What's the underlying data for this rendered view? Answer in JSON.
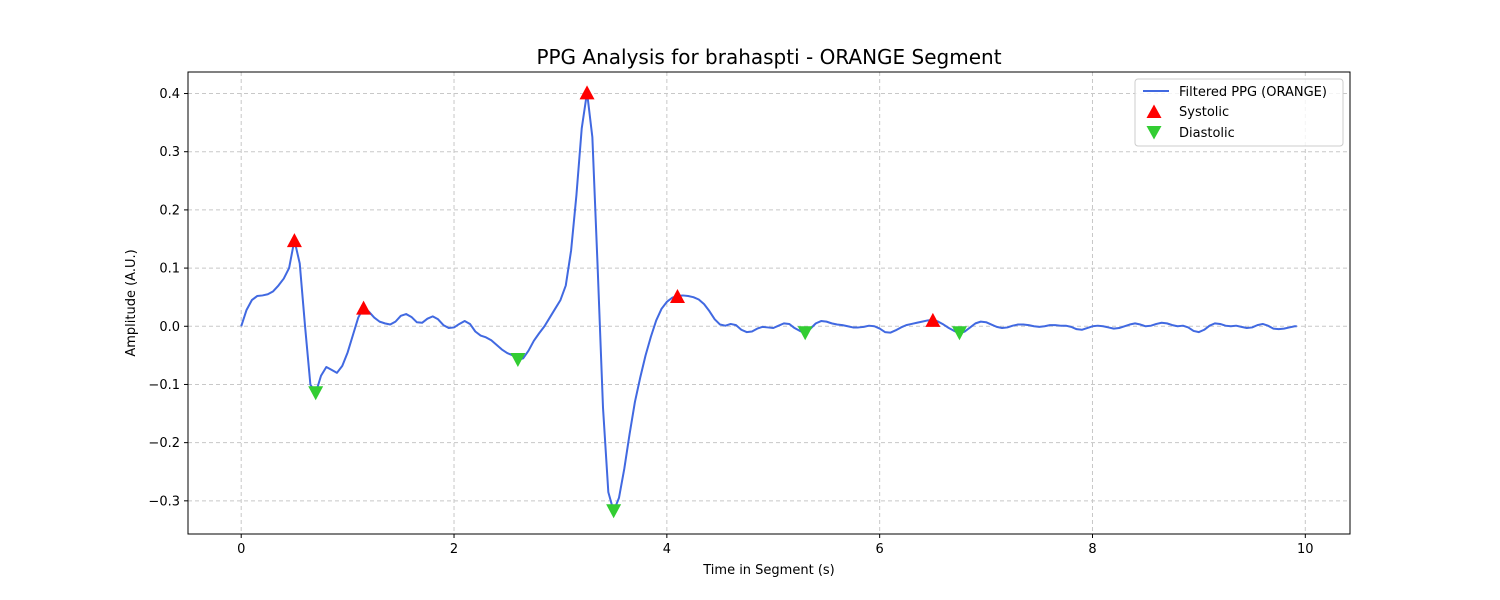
{
  "chart_data": {
    "type": "line",
    "title": "PPG Analysis for brahaspti - ORANGE Segment",
    "xlabel": "Time in Segment (s)",
    "ylabel": "Amplitude (A.U.)",
    "xlim": [
      -0.5,
      10.42
    ],
    "ylim": [
      -0.357,
      0.437
    ],
    "xticks": [
      0,
      2,
      4,
      6,
      8,
      10
    ],
    "xtick_labels": [
      "0",
      "2",
      "4",
      "6",
      "8",
      "10"
    ],
    "yticks": [
      -0.3,
      -0.2,
      -0.1,
      0.0,
      0.1,
      0.2,
      0.3,
      0.4
    ],
    "ytick_labels": [
      "−0.3",
      "−0.2",
      "−0.1",
      "0.0",
      "0.1",
      "0.2",
      "0.3",
      "0.4"
    ],
    "grid": true,
    "legend_position": "top-right",
    "series": [
      {
        "name": "Filtered PPG (ORANGE)",
        "kind": "line",
        "color": "#4169e1",
        "points": [
          [
            0.0,
            0.0
          ],
          [
            0.05,
            0.028
          ],
          [
            0.1,
            0.045
          ],
          [
            0.15,
            0.052
          ],
          [
            0.2,
            0.053
          ],
          [
            0.25,
            0.055
          ],
          [
            0.3,
            0.06
          ],
          [
            0.35,
            0.07
          ],
          [
            0.4,
            0.082
          ],
          [
            0.45,
            0.1
          ],
          [
            0.5,
            0.148
          ],
          [
            0.55,
            0.108
          ],
          [
            0.6,
            0.0
          ],
          [
            0.65,
            -0.1
          ],
          [
            0.7,
            -0.115
          ],
          [
            0.75,
            -0.085
          ],
          [
            0.8,
            -0.07
          ],
          [
            0.85,
            -0.075
          ],
          [
            0.9,
            -0.08
          ],
          [
            0.95,
            -0.068
          ],
          [
            1.0,
            -0.045
          ],
          [
            1.05,
            -0.015
          ],
          [
            1.1,
            0.015
          ],
          [
            1.15,
            0.032
          ],
          [
            1.2,
            0.025
          ],
          [
            1.25,
            0.015
          ],
          [
            1.3,
            0.008
          ],
          [
            1.35,
            0.005
          ],
          [
            1.4,
            0.003
          ],
          [
            1.45,
            0.008
          ],
          [
            1.5,
            0.018
          ],
          [
            1.55,
            0.021
          ],
          [
            1.6,
            0.016
          ],
          [
            1.65,
            0.007
          ],
          [
            1.7,
            0.006
          ],
          [
            1.75,
            0.013
          ],
          [
            1.8,
            0.017
          ],
          [
            1.85,
            0.012
          ],
          [
            1.9,
            0.002
          ],
          [
            1.95,
            -0.003
          ],
          [
            2.0,
            -0.002
          ],
          [
            2.05,
            0.004
          ],
          [
            2.1,
            0.009
          ],
          [
            2.15,
            0.004
          ],
          [
            2.2,
            -0.009
          ],
          [
            2.25,
            -0.016
          ],
          [
            2.3,
            -0.019
          ],
          [
            2.35,
            -0.024
          ],
          [
            2.4,
            -0.032
          ],
          [
            2.45,
            -0.04
          ],
          [
            2.5,
            -0.046
          ],
          [
            2.55,
            -0.05
          ],
          [
            2.6,
            -0.058
          ],
          [
            2.65,
            -0.055
          ],
          [
            2.7,
            -0.042
          ],
          [
            2.75,
            -0.025
          ],
          [
            2.8,
            -0.012
          ],
          [
            2.85,
            0.0
          ],
          [
            2.9,
            0.015
          ],
          [
            2.95,
            0.03
          ],
          [
            3.0,
            0.045
          ],
          [
            3.05,
            0.07
          ],
          [
            3.1,
            0.13
          ],
          [
            3.15,
            0.225
          ],
          [
            3.2,
            0.34
          ],
          [
            3.25,
            0.402
          ],
          [
            3.3,
            0.325
          ],
          [
            3.35,
            0.1
          ],
          [
            3.4,
            -0.14
          ],
          [
            3.45,
            -0.285
          ],
          [
            3.5,
            -0.318
          ],
          [
            3.55,
            -0.295
          ],
          [
            3.6,
            -0.245
          ],
          [
            3.65,
            -0.185
          ],
          [
            3.7,
            -0.13
          ],
          [
            3.75,
            -0.088
          ],
          [
            3.8,
            -0.05
          ],
          [
            3.85,
            -0.018
          ],
          [
            3.9,
            0.01
          ],
          [
            3.95,
            0.03
          ],
          [
            4.0,
            0.042
          ],
          [
            4.05,
            0.049
          ],
          [
            4.1,
            0.052
          ],
          [
            4.15,
            0.053
          ],
          [
            4.2,
            0.052
          ],
          [
            4.25,
            0.05
          ],
          [
            4.3,
            0.046
          ],
          [
            4.35,
            0.038
          ],
          [
            4.4,
            0.026
          ],
          [
            4.45,
            0.012
          ],
          [
            4.5,
            0.003
          ],
          [
            4.55,
            0.001
          ],
          [
            4.6,
            0.004
          ],
          [
            4.65,
            0.002
          ],
          [
            4.7,
            -0.006
          ],
          [
            4.75,
            -0.01
          ],
          [
            4.8,
            -0.009
          ],
          [
            4.85,
            -0.004
          ],
          [
            4.9,
            -0.001
          ],
          [
            4.95,
            -0.002
          ],
          [
            5.0,
            -0.003
          ],
          [
            5.05,
            0.001
          ],
          [
            5.1,
            0.005
          ],
          [
            5.15,
            0.004
          ],
          [
            5.2,
            -0.003
          ],
          [
            5.25,
            -0.008
          ],
          [
            5.3,
            -0.012
          ],
          [
            5.35,
            -0.004
          ],
          [
            5.4,
            0.005
          ],
          [
            5.45,
            0.009
          ],
          [
            5.5,
            0.008
          ],
          [
            5.55,
            0.005
          ],
          [
            5.6,
            0.003
          ],
          [
            5.65,
            0.002
          ],
          [
            5.7,
            0.0
          ],
          [
            5.75,
            -0.002
          ],
          [
            5.8,
            -0.002
          ],
          [
            5.85,
            -0.001
          ],
          [
            5.9,
            0.001
          ],
          [
            5.95,
            0.0
          ],
          [
            6.0,
            -0.004
          ],
          [
            6.05,
            -0.01
          ],
          [
            6.1,
            -0.011
          ],
          [
            6.15,
            -0.007
          ],
          [
            6.2,
            -0.002
          ],
          [
            6.25,
            0.002
          ],
          [
            6.3,
            0.004
          ],
          [
            6.35,
            0.006
          ],
          [
            6.4,
            0.008
          ],
          [
            6.45,
            0.01
          ],
          [
            6.5,
            0.011
          ],
          [
            6.55,
            0.008
          ],
          [
            6.6,
            0.003
          ],
          [
            6.65,
            -0.003
          ],
          [
            6.7,
            -0.008
          ],
          [
            6.75,
            -0.012
          ],
          [
            6.8,
            -0.009
          ],
          [
            6.85,
            -0.002
          ],
          [
            6.9,
            0.005
          ],
          [
            6.95,
            0.008
          ],
          [
            7.0,
            0.007
          ],
          [
            7.05,
            0.003
          ],
          [
            7.1,
            -0.001
          ],
          [
            7.15,
            -0.003
          ],
          [
            7.2,
            -0.002
          ],
          [
            7.25,
            0.001
          ],
          [
            7.3,
            0.003
          ],
          [
            7.35,
            0.003
          ],
          [
            7.4,
            0.002
          ],
          [
            7.45,
            0.0
          ],
          [
            7.5,
            -0.001
          ],
          [
            7.55,
            0.0
          ],
          [
            7.6,
            0.002
          ],
          [
            7.65,
            0.002
          ],
          [
            7.7,
            0.001
          ],
          [
            7.75,
            0.001
          ],
          [
            7.8,
            -0.001
          ],
          [
            7.85,
            -0.005
          ],
          [
            7.9,
            -0.006
          ],
          [
            7.95,
            -0.003
          ],
          [
            8.0,
            0.0
          ],
          [
            8.05,
            0.001
          ],
          [
            8.1,
            0.0
          ],
          [
            8.15,
            -0.002
          ],
          [
            8.2,
            -0.004
          ],
          [
            8.25,
            -0.003
          ],
          [
            8.3,
            0.0
          ],
          [
            8.35,
            0.003
          ],
          [
            8.4,
            0.005
          ],
          [
            8.45,
            0.003
          ],
          [
            8.5,
            0.0
          ],
          [
            8.55,
            0.001
          ],
          [
            8.6,
            0.004
          ],
          [
            8.65,
            0.006
          ],
          [
            8.7,
            0.005
          ],
          [
            8.75,
            0.002
          ],
          [
            8.8,
            0.0
          ],
          [
            8.85,
            0.001
          ],
          [
            8.9,
            -0.002
          ],
          [
            8.95,
            -0.008
          ],
          [
            9.0,
            -0.01
          ],
          [
            9.05,
            -0.006
          ],
          [
            9.1,
            0.001
          ],
          [
            9.15,
            0.005
          ],
          [
            9.2,
            0.004
          ],
          [
            9.25,
            0.001
          ],
          [
            9.3,
            0.0
          ],
          [
            9.35,
            0.001
          ],
          [
            9.4,
            -0.001
          ],
          [
            9.45,
            -0.003
          ],
          [
            9.5,
            -0.002
          ],
          [
            9.55,
            0.002
          ],
          [
            9.6,
            0.004
          ],
          [
            9.65,
            0.001
          ],
          [
            9.7,
            -0.004
          ],
          [
            9.75,
            -0.005
          ],
          [
            9.8,
            -0.004
          ],
          [
            9.85,
            -0.002
          ],
          [
            9.9,
            0.0
          ],
          [
            9.92,
            0.0
          ]
        ]
      },
      {
        "name": "Systolic",
        "kind": "marker",
        "marker": "triangle-up",
        "color": "#ff0000",
        "points": [
          [
            0.5,
            0.148
          ],
          [
            1.15,
            0.032
          ],
          [
            3.25,
            0.402
          ],
          [
            4.1,
            0.052
          ],
          [
            6.5,
            0.011
          ]
        ]
      },
      {
        "name": "Diastolic",
        "kind": "marker",
        "marker": "triangle-down",
        "color": "#32cd32",
        "points": [
          [
            0.7,
            -0.115
          ],
          [
            2.6,
            -0.058
          ],
          [
            3.5,
            -0.318
          ],
          [
            5.3,
            -0.012
          ],
          [
            6.75,
            -0.012
          ]
        ]
      }
    ]
  }
}
